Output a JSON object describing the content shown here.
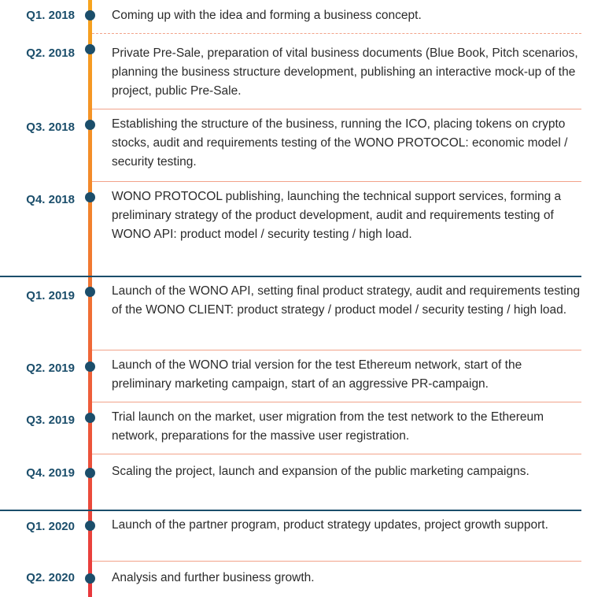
{
  "roadmap": [
    {
      "quarter": "Q1. 2018",
      "text": "Coming up with the idea and forming a  business concept."
    },
    {
      "quarter": "Q2. 2018",
      "text": "Private Pre-Sale, preparation of vital business documents (Blue Book, Pitch scenarios, planning the business structure development, publishing an interactive mock-up of the project, public Pre-Sale."
    },
    {
      "quarter": "Q3. 2018",
      "text": "Establishing the structure of the business, running the ICO, placing tokens on crypto stocks, audit and  requirements testing of the WONO PROTOCOL:  economic model / security testing."
    },
    {
      "quarter": "Q4. 2018",
      "text": "WONO PROTOCOL publishing, launching the technical support services, forming a preliminary strategy of the product development, audit and requirements testing of WONO API:  product model / security testing / high load."
    },
    {
      "quarter": "Q1. 2019",
      "text": "Launch of the WONO API, setting final product strategy, audit and requirements testing of the WONO CLIENT: product strategy / product model / security testing / high load."
    },
    {
      "quarter": "Q2. 2019",
      "text": "Launch of the WONO trial version for the test Ethereum network, start of the preliminary marketing campaign, start of an aggressive PR-campaign."
    },
    {
      "quarter": "Q3. 2019",
      "text": "Trial launch on the market, user migration from the test network to the Ethereum network, preparations for the massive user  registration."
    },
    {
      "quarter": "Q4. 2019",
      "text": "Scaling the project, launch and expansion of the public marketing campaigns."
    },
    {
      "quarter": "Q1. 2020",
      "text": "Launch of the partner program, product strategy updates, project growth support."
    },
    {
      "quarter": "Q2. 2020",
      "text": "Analysis and further business growth."
    }
  ],
  "colors": {
    "quarter_label": "#1b4e6b",
    "dot": "#1b4e6b",
    "axis_top": "#f7a41e",
    "axis_bottom": "#e8383c",
    "year_divider": "#1b4e6b",
    "row_divider": "#f2a38a"
  }
}
